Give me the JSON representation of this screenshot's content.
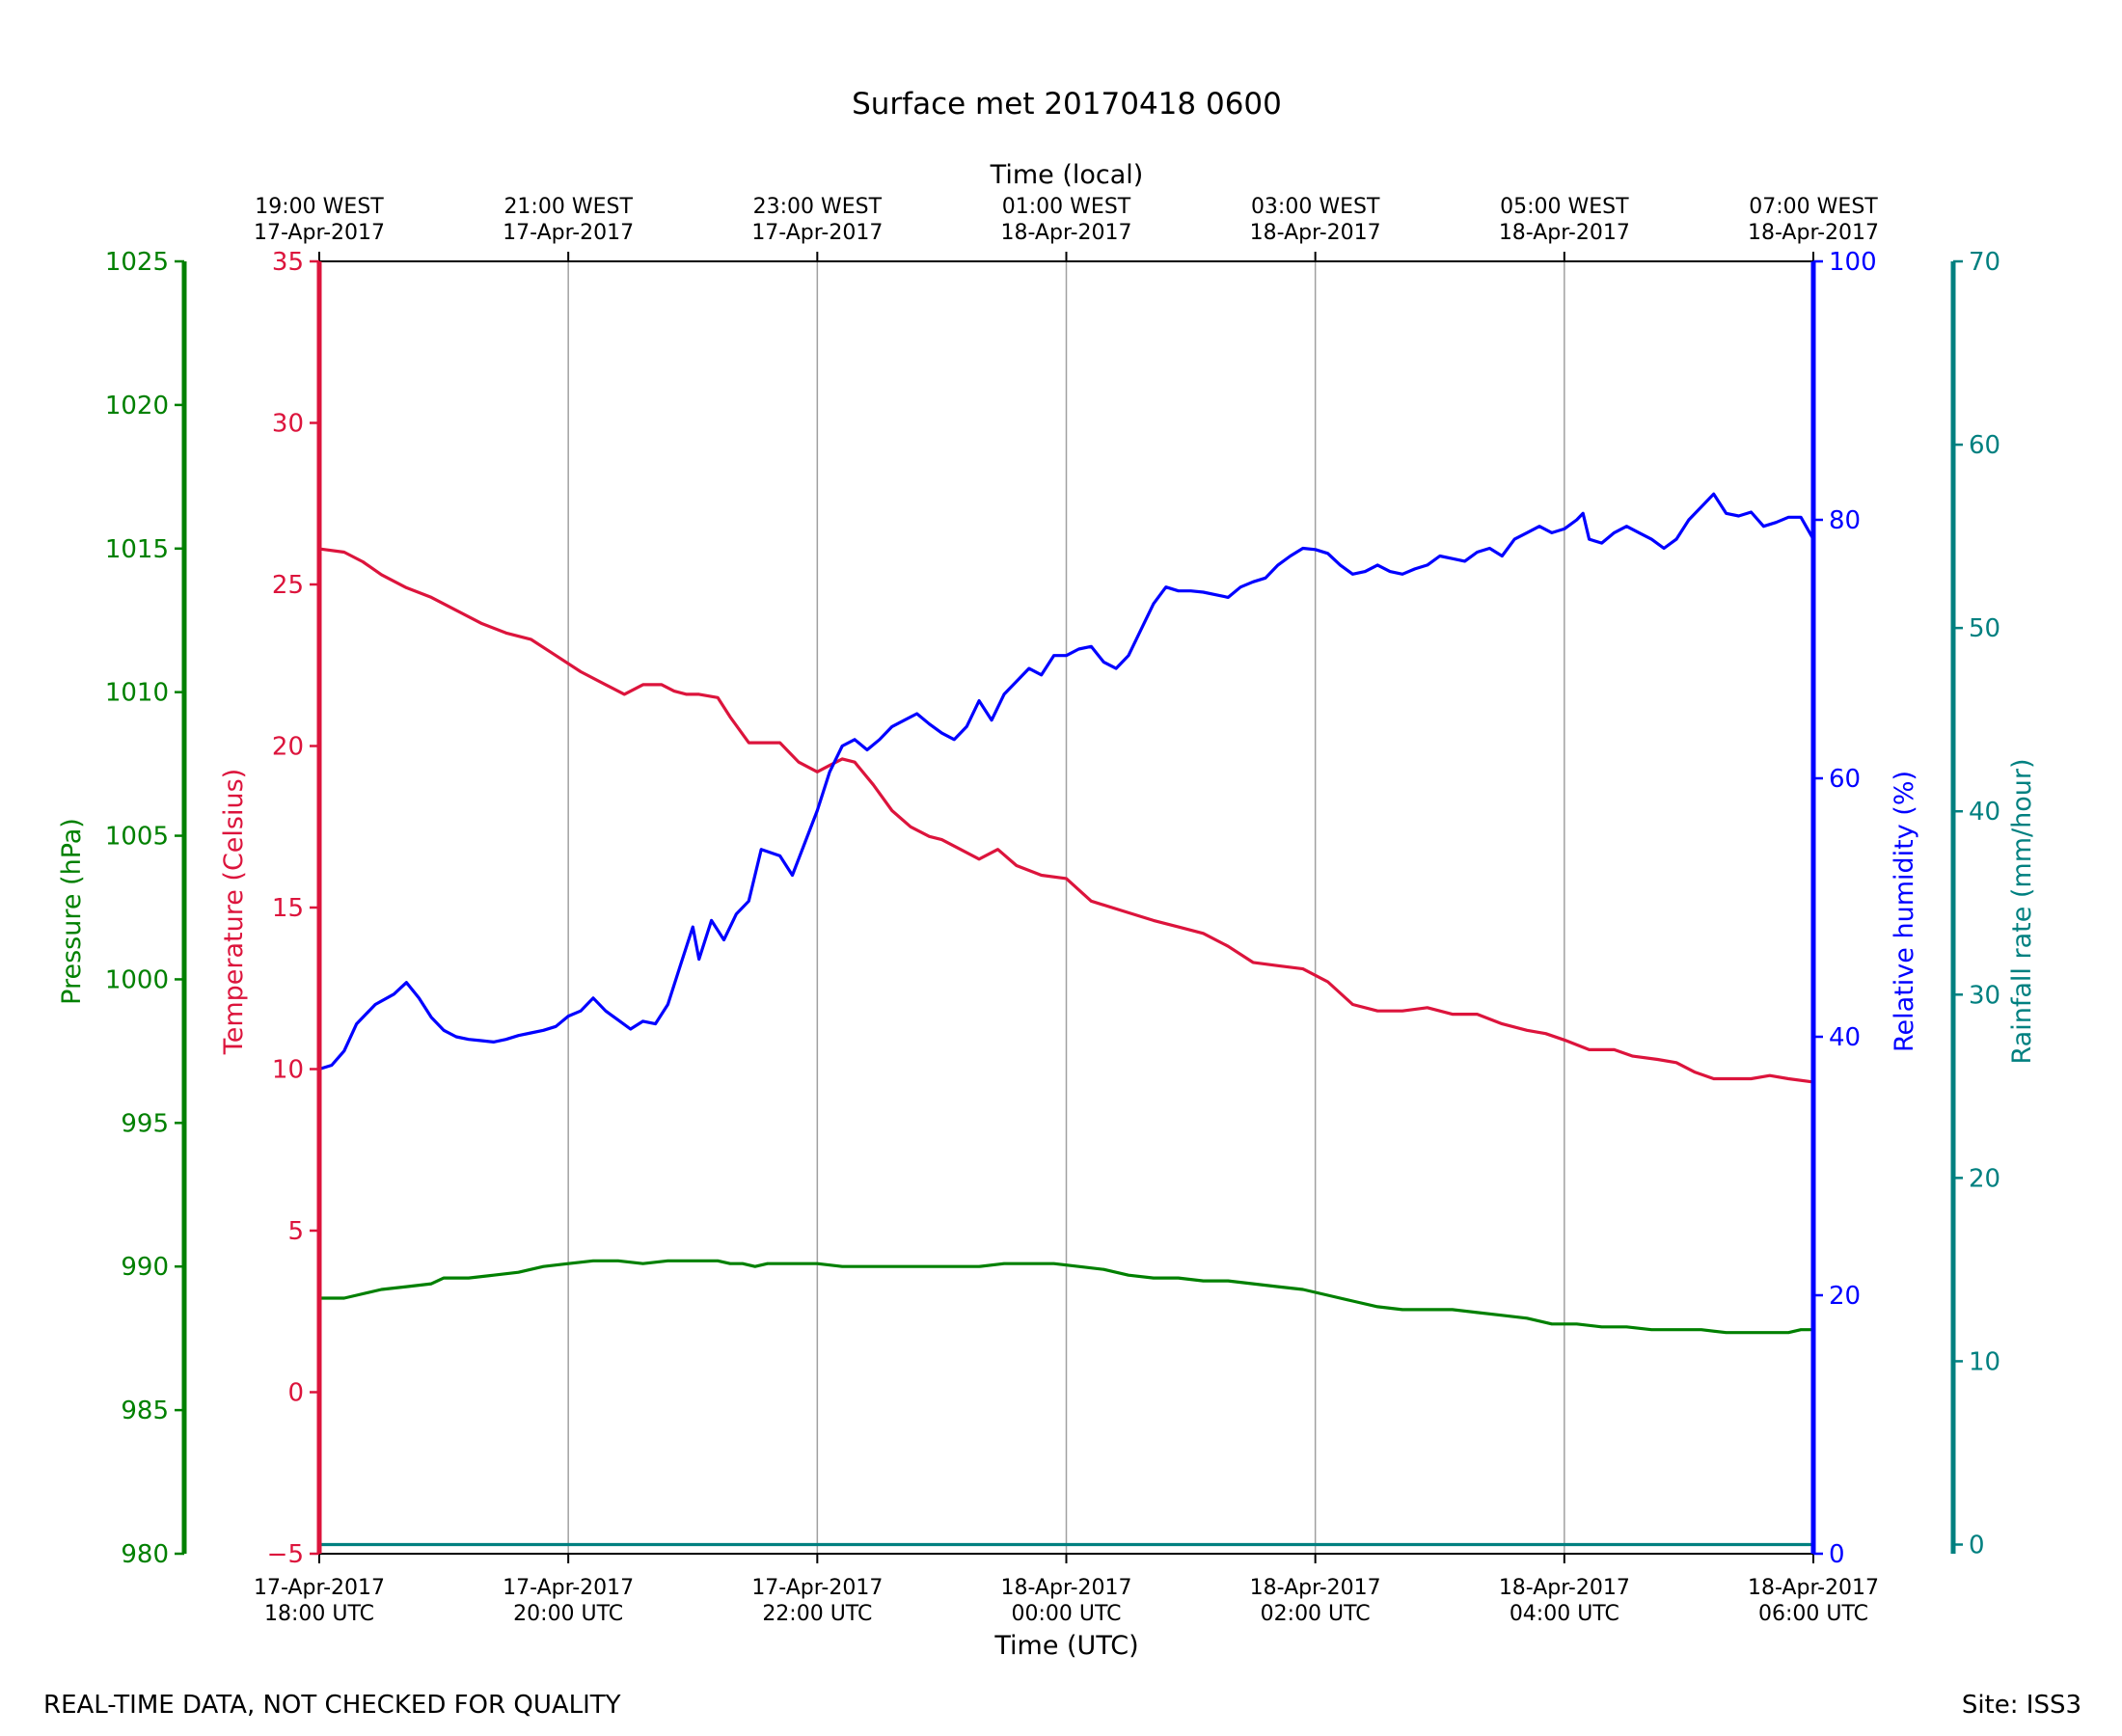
{
  "chart_data": {
    "type": "line",
    "title": "Surface met 20170418 0600",
    "footer_left": "REAL-TIME DATA, NOT CHECKED FOR QUALITY",
    "footer_right": "Site: ISS3",
    "colors": {
      "temperature": "#DC143C",
      "humidity": "#0000FF",
      "pressure": "#008000",
      "rainfall": "#008080",
      "grid": "#A0A0A0"
    },
    "xaxis_bottom": {
      "label": "Time (UTC)",
      "range_hours": [
        0,
        12
      ],
      "ticks": [
        {
          "h": 0,
          "line1": "17-Apr-2017",
          "line2": "18:00 UTC"
        },
        {
          "h": 2,
          "line1": "17-Apr-2017",
          "line2": "20:00 UTC"
        },
        {
          "h": 4,
          "line1": "17-Apr-2017",
          "line2": "22:00 UTC"
        },
        {
          "h": 6,
          "line1": "18-Apr-2017",
          "line2": "00:00 UTC"
        },
        {
          "h": 8,
          "line1": "18-Apr-2017",
          "line2": "02:00 UTC"
        },
        {
          "h": 10,
          "line1": "18-Apr-2017",
          "line2": "04:00 UTC"
        },
        {
          "h": 12,
          "line1": "18-Apr-2017",
          "line2": "06:00 UTC"
        }
      ]
    },
    "xaxis_top": {
      "label": "Time (local)",
      "ticks": [
        {
          "h": 0,
          "line1": "19:00 WEST",
          "line2": "17-Apr-2017"
        },
        {
          "h": 2,
          "line1": "21:00 WEST",
          "line2": "17-Apr-2017"
        },
        {
          "h": 4,
          "line1": "23:00 WEST",
          "line2": "17-Apr-2017"
        },
        {
          "h": 6,
          "line1": "01:00 WEST",
          "line2": "18-Apr-2017"
        },
        {
          "h": 8,
          "line1": "03:00 WEST",
          "line2": "18-Apr-2017"
        },
        {
          "h": 10,
          "line1": "05:00 WEST",
          "line2": "18-Apr-2017"
        },
        {
          "h": 12,
          "line1": "07:00 WEST",
          "line2": "18-Apr-2017"
        }
      ]
    },
    "axes": {
      "pressure": {
        "label": "Pressure (hPa)",
        "ylim": [
          980,
          1025
        ],
        "ticks": [
          "980",
          "985",
          "990",
          "995",
          "1000",
          "1005",
          "1010",
          "1015",
          "1020",
          "1025"
        ]
      },
      "temperature": {
        "label": "Temperature (Celsius)",
        "ylim": [
          -5,
          35
        ],
        "ticks": [
          "−5",
          "0",
          "5",
          "10",
          "15",
          "20",
          "25",
          "30",
          "35"
        ]
      },
      "humidity": {
        "label": "Relative humidity (%)",
        "ylim": [
          0,
          100
        ],
        "ticks": [
          "0",
          "20",
          "40",
          "60",
          "80",
          "100"
        ]
      },
      "rainfall": {
        "label": "Rainfall rate (mm/hour)",
        "ylim": [
          -0.5,
          70
        ],
        "ticks": [
          "0",
          "10",
          "20",
          "30",
          "40",
          "50",
          "60",
          "70"
        ]
      }
    },
    "series": [
      {
        "name": "Temperature",
        "axis": "temperature",
        "points": [
          [
            0,
            26.1
          ],
          [
            0.2,
            26.0
          ],
          [
            0.35,
            25.7
          ],
          [
            0.5,
            25.3
          ],
          [
            0.7,
            24.9
          ],
          [
            0.9,
            24.6
          ],
          [
            1.1,
            24.2
          ],
          [
            1.3,
            23.8
          ],
          [
            1.5,
            23.5
          ],
          [
            1.7,
            23.3
          ],
          [
            1.9,
            22.8
          ],
          [
            2.1,
            22.3
          ],
          [
            2.3,
            21.9
          ],
          [
            2.45,
            21.6
          ],
          [
            2.6,
            21.9
          ],
          [
            2.75,
            21.9
          ],
          [
            2.85,
            21.7
          ],
          [
            2.95,
            21.6
          ],
          [
            3.05,
            21.6
          ],
          [
            3.2,
            21.5
          ],
          [
            3.3,
            20.9
          ],
          [
            3.45,
            20.1
          ],
          [
            3.6,
            20.1
          ],
          [
            3.7,
            20.1
          ],
          [
            3.85,
            19.5
          ],
          [
            4.0,
            19.2
          ],
          [
            4.1,
            19.4
          ],
          [
            4.2,
            19.6
          ],
          [
            4.3,
            19.5
          ],
          [
            4.45,
            18.8
          ],
          [
            4.6,
            18.0
          ],
          [
            4.75,
            17.5
          ],
          [
            4.9,
            17.2
          ],
          [
            5.0,
            17.1
          ],
          [
            5.15,
            16.8
          ],
          [
            5.3,
            16.5
          ],
          [
            5.45,
            16.8
          ],
          [
            5.6,
            16.3
          ],
          [
            5.8,
            16.0
          ],
          [
            6.0,
            15.9
          ],
          [
            6.2,
            15.2
          ],
          [
            6.45,
            14.9
          ],
          [
            6.7,
            14.6
          ],
          [
            6.9,
            14.4
          ],
          [
            7.1,
            14.2
          ],
          [
            7.3,
            13.8
          ],
          [
            7.5,
            13.3
          ],
          [
            7.7,
            13.2
          ],
          [
            7.9,
            13.1
          ],
          [
            8.1,
            12.7
          ],
          [
            8.3,
            12.0
          ],
          [
            8.5,
            11.8
          ],
          [
            8.7,
            11.8
          ],
          [
            8.9,
            11.9
          ],
          [
            9.1,
            11.7
          ],
          [
            9.3,
            11.7
          ],
          [
            9.5,
            11.4
          ],
          [
            9.7,
            11.2
          ],
          [
            9.85,
            11.1
          ],
          [
            10.0,
            10.9
          ],
          [
            10.2,
            10.6
          ],
          [
            10.4,
            10.6
          ],
          [
            10.55,
            10.4
          ],
          [
            10.75,
            10.3
          ],
          [
            10.9,
            10.2
          ],
          [
            11.05,
            9.9
          ],
          [
            11.2,
            9.7
          ],
          [
            11.35,
            9.7
          ],
          [
            11.5,
            9.7
          ],
          [
            11.65,
            9.8
          ],
          [
            11.8,
            9.7
          ],
          [
            12.0,
            9.6
          ]
        ]
      },
      {
        "name": "Relative humidity",
        "axis": "humidity",
        "points": [
          [
            0,
            37.5
          ],
          [
            0.1,
            37.8
          ],
          [
            0.2,
            38.9
          ],
          [
            0.3,
            41.0
          ],
          [
            0.45,
            42.5
          ],
          [
            0.6,
            43.3
          ],
          [
            0.7,
            44.2
          ],
          [
            0.8,
            43.0
          ],
          [
            0.9,
            41.5
          ],
          [
            1.0,
            40.5
          ],
          [
            1.1,
            40.0
          ],
          [
            1.2,
            39.8
          ],
          [
            1.3,
            39.7
          ],
          [
            1.4,
            39.6
          ],
          [
            1.5,
            39.8
          ],
          [
            1.6,
            40.1
          ],
          [
            1.7,
            40.3
          ],
          [
            1.8,
            40.5
          ],
          [
            1.9,
            40.8
          ],
          [
            2.0,
            41.6
          ],
          [
            2.1,
            42.0
          ],
          [
            2.2,
            43.0
          ],
          [
            2.3,
            42.0
          ],
          [
            2.4,
            41.3
          ],
          [
            2.5,
            40.6
          ],
          [
            2.6,
            41.2
          ],
          [
            2.7,
            41.0
          ],
          [
            2.8,
            42.5
          ],
          [
            2.9,
            45.5
          ],
          [
            3.0,
            48.5
          ],
          [
            3.05,
            46.0
          ],
          [
            3.15,
            49.0
          ],
          [
            3.25,
            47.5
          ],
          [
            3.35,
            49.5
          ],
          [
            3.45,
            50.5
          ],
          [
            3.55,
            54.5
          ],
          [
            3.7,
            54.0
          ],
          [
            3.8,
            52.5
          ],
          [
            3.9,
            55.0
          ],
          [
            4.0,
            57.5
          ],
          [
            4.1,
            60.5
          ],
          [
            4.2,
            62.5
          ],
          [
            4.3,
            63.0
          ],
          [
            4.4,
            62.2
          ],
          [
            4.5,
            63.0
          ],
          [
            4.6,
            64.0
          ],
          [
            4.7,
            64.5
          ],
          [
            4.8,
            65.0
          ],
          [
            4.9,
            64.2
          ],
          [
            5.0,
            63.5
          ],
          [
            5.1,
            63.0
          ],
          [
            5.2,
            64.0
          ],
          [
            5.3,
            66.0
          ],
          [
            5.4,
            64.5
          ],
          [
            5.5,
            66.5
          ],
          [
            5.6,
            67.5
          ],
          [
            5.7,
            68.5
          ],
          [
            5.8,
            68.0
          ],
          [
            5.9,
            69.5
          ],
          [
            6.0,
            69.5
          ],
          [
            6.1,
            70.0
          ],
          [
            6.2,
            70.2
          ],
          [
            6.3,
            69.0
          ],
          [
            6.4,
            68.5
          ],
          [
            6.5,
            69.5
          ],
          [
            6.6,
            71.5
          ],
          [
            6.7,
            73.5
          ],
          [
            6.8,
            74.8
          ],
          [
            6.9,
            74.5
          ],
          [
            7.0,
            74.5
          ],
          [
            7.1,
            74.4
          ],
          [
            7.2,
            74.2
          ],
          [
            7.3,
            74.0
          ],
          [
            7.4,
            74.8
          ],
          [
            7.5,
            75.2
          ],
          [
            7.6,
            75.5
          ],
          [
            7.7,
            76.5
          ],
          [
            7.8,
            77.2
          ],
          [
            7.9,
            77.8
          ],
          [
            8.0,
            77.7
          ],
          [
            8.1,
            77.4
          ],
          [
            8.2,
            76.5
          ],
          [
            8.3,
            75.8
          ],
          [
            8.4,
            76.0
          ],
          [
            8.5,
            76.5
          ],
          [
            8.6,
            76.0
          ],
          [
            8.7,
            75.8
          ],
          [
            8.8,
            76.2
          ],
          [
            8.9,
            76.5
          ],
          [
            9.0,
            77.2
          ],
          [
            9.1,
            77.0
          ],
          [
            9.2,
            76.8
          ],
          [
            9.3,
            77.5
          ],
          [
            9.4,
            77.8
          ],
          [
            9.5,
            77.2
          ],
          [
            9.6,
            78.5
          ],
          [
            9.7,
            79.0
          ],
          [
            9.8,
            79.5
          ],
          [
            9.9,
            79.0
          ],
          [
            10.0,
            79.3
          ],
          [
            10.1,
            80.0
          ],
          [
            10.15,
            80.5
          ],
          [
            10.2,
            78.5
          ],
          [
            10.3,
            78.2
          ],
          [
            10.4,
            79.0
          ],
          [
            10.5,
            79.5
          ],
          [
            10.6,
            79.0
          ],
          [
            10.7,
            78.5
          ],
          [
            10.8,
            77.8
          ],
          [
            10.9,
            78.5
          ],
          [
            11.0,
            80.0
          ],
          [
            11.1,
            81.0
          ],
          [
            11.2,
            82.0
          ],
          [
            11.3,
            80.5
          ],
          [
            11.4,
            80.3
          ],
          [
            11.5,
            80.6
          ],
          [
            11.6,
            79.5
          ],
          [
            11.7,
            79.8
          ],
          [
            11.8,
            80.2
          ],
          [
            11.9,
            80.2
          ],
          [
            12.0,
            78.5
          ]
        ]
      },
      {
        "name": "Pressure",
        "axis": "pressure",
        "points": [
          [
            0,
            988.9
          ],
          [
            0.2,
            988.9
          ],
          [
            0.3,
            989.0
          ],
          [
            0.5,
            989.2
          ],
          [
            0.7,
            989.3
          ],
          [
            0.9,
            989.4
          ],
          [
            1.0,
            989.6
          ],
          [
            1.2,
            989.6
          ],
          [
            1.4,
            989.7
          ],
          [
            1.6,
            989.8
          ],
          [
            1.8,
            990.0
          ],
          [
            2.0,
            990.1
          ],
          [
            2.2,
            990.2
          ],
          [
            2.4,
            990.2
          ],
          [
            2.6,
            990.1
          ],
          [
            2.8,
            990.2
          ],
          [
            3.0,
            990.2
          ],
          [
            3.1,
            990.2
          ],
          [
            3.2,
            990.2
          ],
          [
            3.3,
            990.1
          ],
          [
            3.4,
            990.1
          ],
          [
            3.5,
            990.0
          ],
          [
            3.6,
            990.1
          ],
          [
            3.8,
            990.1
          ],
          [
            4.0,
            990.1
          ],
          [
            4.2,
            990.0
          ],
          [
            4.5,
            990.0
          ],
          [
            4.8,
            990.0
          ],
          [
            5.0,
            990.0
          ],
          [
            5.3,
            990.0
          ],
          [
            5.5,
            990.1
          ],
          [
            5.7,
            990.1
          ],
          [
            5.9,
            990.1
          ],
          [
            6.1,
            990.0
          ],
          [
            6.3,
            989.9
          ],
          [
            6.5,
            989.7
          ],
          [
            6.7,
            989.6
          ],
          [
            6.9,
            989.6
          ],
          [
            7.1,
            989.5
          ],
          [
            7.3,
            989.5
          ],
          [
            7.5,
            989.4
          ],
          [
            7.7,
            989.3
          ],
          [
            7.9,
            989.2
          ],
          [
            8.1,
            989.0
          ],
          [
            8.3,
            988.8
          ],
          [
            8.5,
            988.6
          ],
          [
            8.7,
            988.5
          ],
          [
            8.9,
            988.5
          ],
          [
            9.1,
            988.5
          ],
          [
            9.3,
            988.4
          ],
          [
            9.5,
            988.3
          ],
          [
            9.7,
            988.2
          ],
          [
            9.9,
            988.0
          ],
          [
            10.1,
            988.0
          ],
          [
            10.3,
            987.9
          ],
          [
            10.5,
            987.9
          ],
          [
            10.7,
            987.8
          ],
          [
            10.9,
            987.8
          ],
          [
            11.1,
            987.8
          ],
          [
            11.3,
            987.7
          ],
          [
            11.5,
            987.7
          ],
          [
            11.7,
            987.7
          ],
          [
            11.8,
            987.7
          ],
          [
            11.9,
            987.8
          ],
          [
            12.0,
            987.8
          ]
        ]
      },
      {
        "name": "Rainfall rate",
        "axis": "rainfall",
        "points": [
          [
            0,
            0
          ],
          [
            12,
            0
          ]
        ]
      }
    ]
  }
}
